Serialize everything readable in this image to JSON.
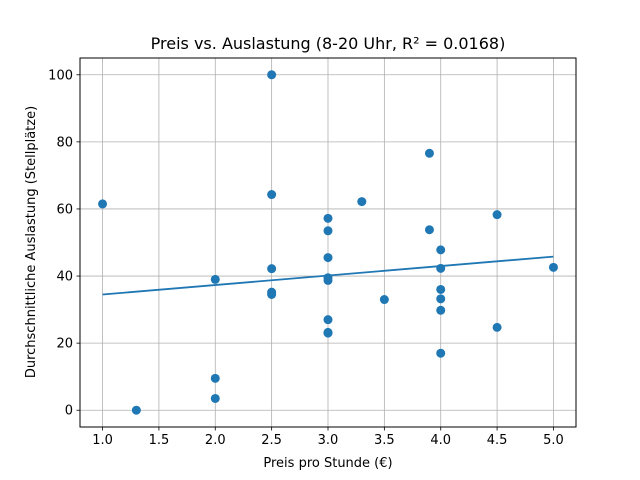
{
  "chart_data": {
    "type": "scatter",
    "title": "Preis vs. Auslastung (8-20 Uhr, R² = 0.0168)",
    "xlabel": "Preis pro Stunde (€)",
    "ylabel": "Durchschnittliche Auslastung (Stellplätze)",
    "xlim": [
      0.8,
      5.2
    ],
    "ylim": [
      -5,
      105
    ],
    "xticks": [
      "1.0",
      "1.5",
      "2.0",
      "2.5",
      "3.0",
      "3.5",
      "4.0",
      "4.5",
      "5.0"
    ],
    "yticks": [
      "0",
      "20",
      "40",
      "60",
      "80",
      "100"
    ],
    "grid": true,
    "point_color": "#1f77b4",
    "line_color": "#1f77b4",
    "points": [
      {
        "x": 1.0,
        "y": 61.5
      },
      {
        "x": 1.3,
        "y": 0.0
      },
      {
        "x": 2.0,
        "y": 3.5
      },
      {
        "x": 2.0,
        "y": 9.5
      },
      {
        "x": 2.0,
        "y": 39.0
      },
      {
        "x": 2.5,
        "y": 100.0
      },
      {
        "x": 2.5,
        "y": 64.3
      },
      {
        "x": 2.5,
        "y": 42.2
      },
      {
        "x": 2.5,
        "y": 35.2
      },
      {
        "x": 2.5,
        "y": 34.5
      },
      {
        "x": 3.0,
        "y": 57.2
      },
      {
        "x": 3.0,
        "y": 53.5
      },
      {
        "x": 3.0,
        "y": 45.5
      },
      {
        "x": 3.0,
        "y": 39.5
      },
      {
        "x": 3.0,
        "y": 38.7
      },
      {
        "x": 3.0,
        "y": 27.0
      },
      {
        "x": 3.0,
        "y": 23.2
      },
      {
        "x": 3.0,
        "y": 23.0
      },
      {
        "x": 3.3,
        "y": 62.2
      },
      {
        "x": 3.5,
        "y": 33.0
      },
      {
        "x": 3.9,
        "y": 76.6
      },
      {
        "x": 3.9,
        "y": 53.8
      },
      {
        "x": 4.0,
        "y": 47.8
      },
      {
        "x": 4.0,
        "y": 42.3
      },
      {
        "x": 4.0,
        "y": 36.0
      },
      {
        "x": 4.0,
        "y": 33.2
      },
      {
        "x": 4.0,
        "y": 29.8
      },
      {
        "x": 4.0,
        "y": 17.0
      },
      {
        "x": 4.5,
        "y": 58.3
      },
      {
        "x": 4.5,
        "y": 24.7
      },
      {
        "x": 5.0,
        "y": 42.6
      }
    ],
    "regression_line": {
      "x": [
        1.0,
        5.0
      ],
      "y": [
        34.5,
        45.8
      ]
    }
  }
}
